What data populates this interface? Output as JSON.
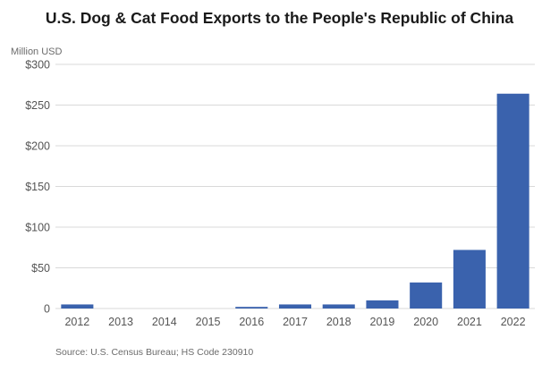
{
  "chart_data": {
    "type": "bar",
    "title": "U.S. Dog & Cat Food Exports to the People's Republic of China",
    "ylabel": "Million USD",
    "xlabel": "",
    "categories": [
      "2012",
      "2013",
      "2014",
      "2015",
      "2016",
      "2017",
      "2018",
      "2019",
      "2020",
      "2021",
      "2022"
    ],
    "values": [
      5,
      0,
      0,
      0,
      2,
      5,
      5,
      10,
      32,
      72,
      264
    ],
    "ylim": [
      0,
      300
    ],
    "yticks": [
      0,
      50,
      100,
      150,
      200,
      250,
      300
    ],
    "ytick_labels": [
      "0",
      "$50",
      "$100",
      "$150",
      "$200",
      "$250",
      "$300"
    ],
    "grid": true,
    "bar_color": "#3a62ad",
    "grid_color": "#d9d9d9",
    "source": "Source: U.S. Census Bureau; HS Code 230910"
  }
}
